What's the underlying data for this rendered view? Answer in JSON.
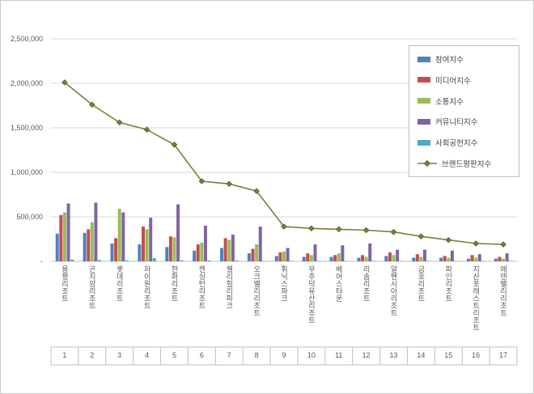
{
  "colors": {
    "background": "#FFFFFF",
    "frame_border": "#C9C9C9",
    "grid": "#D9D9D9",
    "axis": "#BFBFBF",
    "text": "#595959"
  },
  "chart_data": {
    "type": "bar+line",
    "title": "",
    "xlabel": "",
    "ylabel": "",
    "ylim": [
      0,
      2500000
    ],
    "grid": true,
    "legend_position": "right-top",
    "y_tick_values": [
      0,
      500000,
      1000000,
      1500000,
      2000000,
      2500000
    ],
    "y_tick_labels": [
      "-",
      "500,000",
      "1,000,000",
      "1,500,000",
      "2,000,000",
      "2,500,000"
    ],
    "categories": [
      "용평리조트",
      "곤지암리조트",
      "롯데리조트",
      "하이원리조트",
      "한화리조트",
      "켄싱턴리조트",
      "웰리힐리파크",
      "오크밸리리조트",
      "휘닉스파크",
      "무주덕유산리조트",
      "베어스타운",
      "리솜리조트",
      "알펜시아리조트",
      "금호리조트",
      "파인리조트",
      "지산포레스트리조트",
      "에덴밸리리조트"
    ],
    "category_numbers": [
      "1",
      "2",
      "3",
      "4",
      "5",
      "6",
      "7",
      "8",
      "9",
      "10",
      "11",
      "12",
      "13",
      "14",
      "15",
      "16",
      "17"
    ],
    "bar_series": [
      {
        "name": "참여지수",
        "color": "#4F81BD",
        "values": [
          310000,
          320000,
          200000,
          190000,
          160000,
          120000,
          150000,
          90000,
          60000,
          50000,
          50000,
          40000,
          60000,
          40000,
          40000,
          30000,
          30000
        ]
      },
      {
        "name": "미디어지수",
        "color": "#C0504D",
        "values": [
          520000,
          360000,
          260000,
          390000,
          280000,
          190000,
          260000,
          140000,
          100000,
          90000,
          70000,
          70000,
          100000,
          80000,
          60000,
          70000,
          50000
        ]
      },
      {
        "name": "소통지수",
        "color": "#9BBB59",
        "values": [
          550000,
          440000,
          590000,
          360000,
          270000,
          210000,
          240000,
          190000,
          110000,
          70000,
          90000,
          50000,
          70000,
          50000,
          40000,
          40000,
          30000
        ]
      },
      {
        "name": "커뮤니티지수",
        "color": "#8064A2",
        "values": [
          650000,
          660000,
          550000,
          490000,
          640000,
          400000,
          300000,
          390000,
          150000,
          190000,
          180000,
          200000,
          130000,
          130000,
          120000,
          80000,
          90000
        ]
      },
      {
        "name": "사회공헌지수",
        "color": "#4BACC6",
        "values": [
          20000,
          15000,
          10000,
          35000,
          10000,
          10000,
          10000,
          5000,
          5000,
          5000,
          5000,
          5000,
          5000,
          5000,
          5000,
          5000,
          5000
        ]
      }
    ],
    "line_series": {
      "name": "브랜드평판지수",
      "color": "#7E7E38",
      "marker_outline": "#55552A",
      "values": [
        2010000,
        1760000,
        1560000,
        1480000,
        1310000,
        900000,
        870000,
        790000,
        390000,
        370000,
        360000,
        350000,
        330000,
        280000,
        240000,
        200000,
        190000
      ]
    }
  }
}
